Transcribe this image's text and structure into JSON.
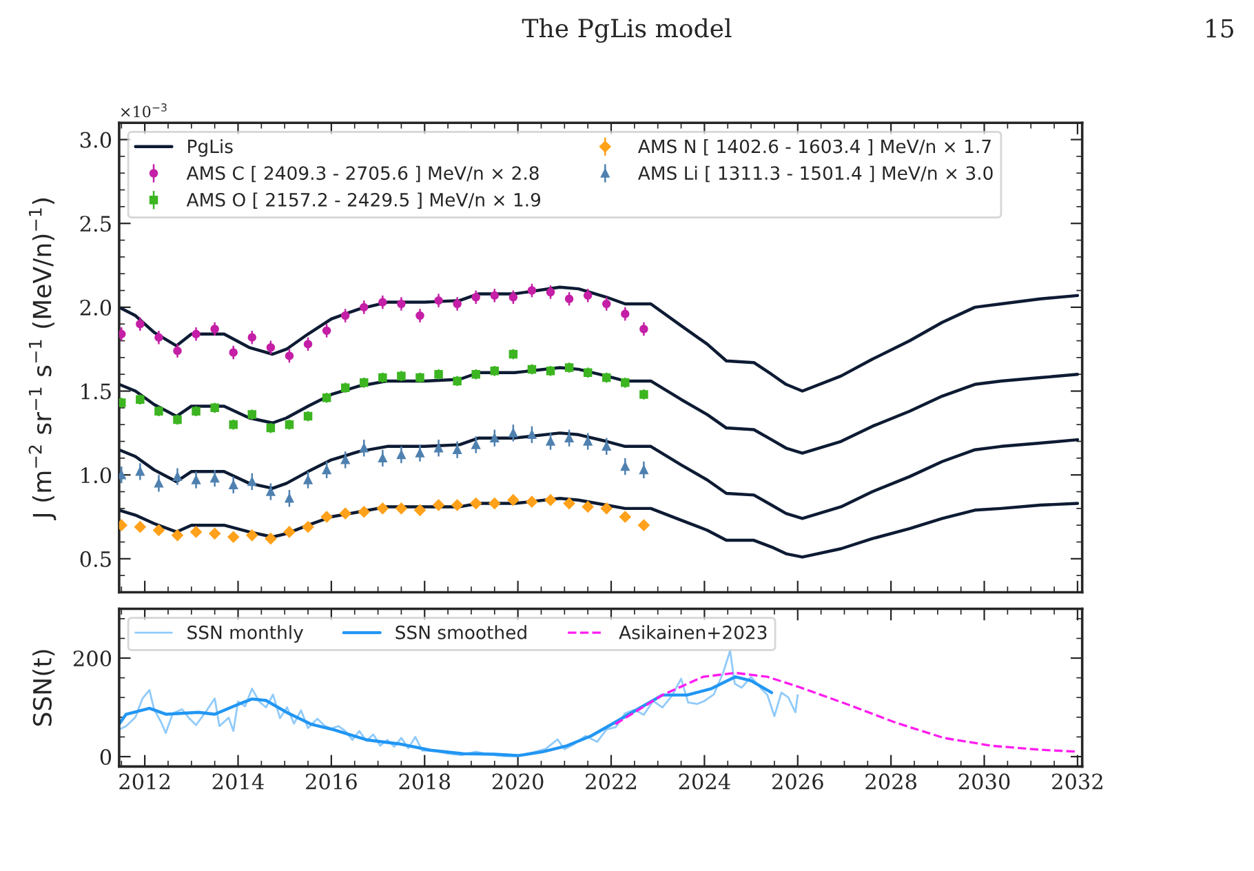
{
  "chart_data": [
    {
      "type": "line",
      "ylabel": "J (m$^{−2}$ sr$^{−1}$ s$^{−1}$ (MeV/n)$^{−1}$)",
      "annotations": [
        "The PgLis model",
        "15",
        "×10$^{−3}$"
      ],
      "xlim": [
        2011.45,
        2032.1
      ],
      "xticks": [
        2012,
        2014,
        2016,
        2018,
        2020,
        2022,
        2024,
        2026,
        2028,
        2030,
        2032
      ],
      "ylim": [
        0.3,
        3.1
      ],
      "yticks": [
        0.5,
        {
          "value": 1,
          "label": "1.0"
        },
        1.5,
        {
          "value": 2,
          "label": "2.0"
        },
        2.5,
        {
          "value": 3,
          "label": "3.0"
        }
      ],
      "tick_labels": "y",
      "legend": "top left",
      "series": [
        {
          "name": "PgLis",
          "type": "line",
          "color": "#0d1b33",
          "line_style": "solid",
          "x": [
            2011.45,
            2011.8,
            2012.2,
            2012.68,
            2013.0,
            2013.7,
            2014.24,
            2014.74,
            2015.04,
            2015.5,
            2016.0,
            2016.6,
            2017.2,
            2018.0,
            2018.75,
            2019.16,
            2019.93,
            2020.9,
            2021.3,
            2021.9,
            2022.3,
            2022.85,
            2023.5,
            2024.06,
            2024.47,
            2025.06,
            2025.44,
            2025.75,
            2026.1,
            2026.93,
            2027.6,
            2028.4,
            2029.1,
            2029.8,
            2030.36,
            2031.2,
            2032.0
          ],
          "values": [
            2.0,
            1.95,
            1.85,
            1.77,
            1.84,
            1.84,
            1.76,
            1.72,
            1.75,
            1.84,
            1.93,
            1.99,
            2.03,
            2.03,
            2.04,
            2.08,
            2.08,
            2.12,
            2.11,
            2.06,
            2.02,
            2.02,
            1.89,
            1.78,
            1.68,
            1.67,
            1.6,
            1.54,
            1.5,
            1.59,
            1.69,
            1.8,
            1.91,
            2.0,
            2.02,
            2.05,
            2.07
          ]
        },
        {
          "name": "AMS C [ 2409.3 - 2705.6 ] MeV/n × 2.8",
          "type": "scatter",
          "marker": "circle",
          "color": "#c41fa6",
          "x": [
            2011.5,
            2011.9,
            2012.3,
            2012.7,
            2013.1,
            2013.5,
            2013.9,
            2014.3,
            2014.7,
            2015.1,
            2015.5,
            2015.9,
            2016.3,
            2016.7,
            2017.1,
            2017.5,
            2017.9,
            2018.3,
            2018.7,
            2019.1,
            2019.5,
            2019.9,
            2020.3,
            2020.7,
            2021.1,
            2021.5,
            2021.9,
            2022.3,
            2022.7
          ],
          "values": [
            1.84,
            1.9,
            1.82,
            1.74,
            1.84,
            1.87,
            1.73,
            1.82,
            1.76,
            1.71,
            1.78,
            1.86,
            1.95,
            2.0,
            2.03,
            2.02,
            1.95,
            2.04,
            2.02,
            2.06,
            2.07,
            2.06,
            2.1,
            2.09,
            2.05,
            2.07,
            2.02,
            1.96,
            1.87
          ],
          "errors": [
            0.04,
            0.04,
            0.04,
            0.04,
            0.04,
            0.04,
            0.04,
            0.04,
            0.04,
            0.04,
            0.04,
            0.04,
            0.04,
            0.04,
            0.04,
            0.04,
            0.04,
            0.04,
            0.04,
            0.04,
            0.04,
            0.04,
            0.04,
            0.04,
            0.04,
            0.04,
            0.04,
            0.04,
            0.04
          ]
        },
        {
          "name": "AMS O [ 2157.2 - 2429.5 ] MeV/n × 1.9",
          "type": "scatter",
          "marker": "square",
          "color": "#3cb521",
          "x": [
            2011.5,
            2011.9,
            2012.3,
            2012.7,
            2013.1,
            2013.5,
            2013.9,
            2014.3,
            2014.7,
            2015.1,
            2015.5,
            2015.9,
            2016.3,
            2016.7,
            2017.1,
            2017.5,
            2017.9,
            2018.3,
            2018.7,
            2019.1,
            2019.5,
            2019.9,
            2020.3,
            2020.7,
            2021.1,
            2021.5,
            2021.9,
            2022.3,
            2022.7
          ],
          "values": [
            1.43,
            1.45,
            1.38,
            1.33,
            1.38,
            1.4,
            1.3,
            1.36,
            1.28,
            1.3,
            1.35,
            1.46,
            1.52,
            1.55,
            1.58,
            1.59,
            1.58,
            1.6,
            1.56,
            1.6,
            1.62,
            1.72,
            1.63,
            1.62,
            1.64,
            1.61,
            1.58,
            1.55,
            1.48
          ],
          "errors": [
            0.03,
            0.03,
            0.03,
            0.03,
            0.03,
            0.03,
            0.03,
            0.03,
            0.03,
            0.03,
            0.03,
            0.03,
            0.03,
            0.03,
            0.03,
            0.03,
            0.03,
            0.03,
            0.03,
            0.03,
            0.03,
            0.03,
            0.03,
            0.03,
            0.03,
            0.03,
            0.03,
            0.03,
            0.03
          ]
        },
        {
          "name": "AMS N [ 1402.6 - 1603.4 ] MeV/n × 1.7",
          "type": "scatter",
          "marker": "diamond",
          "color": "#ffa11a",
          "x": [
            2011.5,
            2011.9,
            2012.3,
            2012.7,
            2013.1,
            2013.5,
            2013.9,
            2014.3,
            2014.7,
            2015.1,
            2015.5,
            2015.9,
            2016.3,
            2016.7,
            2017.1,
            2017.5,
            2017.9,
            2018.3,
            2018.7,
            2019.1,
            2019.5,
            2019.9,
            2020.3,
            2020.7,
            2021.1,
            2021.5,
            2021.9,
            2022.3,
            2022.7
          ],
          "values": [
            0.7,
            0.69,
            0.67,
            0.64,
            0.66,
            0.65,
            0.63,
            0.64,
            0.62,
            0.66,
            0.69,
            0.75,
            0.77,
            0.78,
            0.8,
            0.8,
            0.79,
            0.82,
            0.82,
            0.83,
            0.83,
            0.85,
            0.84,
            0.85,
            0.83,
            0.81,
            0.8,
            0.75,
            0.7
          ],
          "errors": [
            0.02,
            0.02,
            0.02,
            0.02,
            0.02,
            0.02,
            0.02,
            0.02,
            0.02,
            0.02,
            0.02,
            0.02,
            0.02,
            0.02,
            0.02,
            0.02,
            0.02,
            0.02,
            0.02,
            0.02,
            0.02,
            0.02,
            0.02,
            0.02,
            0.02,
            0.02,
            0.02,
            0.02,
            0.02
          ]
        },
        {
          "name": "AMS Li [ 1311.3 - 1501.4 ] MeV/n × 3.0",
          "type": "scatter",
          "marker": "triangle",
          "color": "#4f81b0",
          "x": [
            2011.5,
            2011.9,
            2012.3,
            2012.7,
            2013.1,
            2013.5,
            2013.9,
            2014.3,
            2014.7,
            2015.1,
            2015.5,
            2015.9,
            2016.3,
            2016.7,
            2017.1,
            2017.5,
            2017.9,
            2018.3,
            2018.7,
            2019.1,
            2019.5,
            2019.9,
            2020.3,
            2020.7,
            2021.1,
            2021.5,
            2021.9,
            2022.3,
            2022.7
          ],
          "values": [
            1.0,
            1.02,
            0.95,
            0.99,
            0.97,
            0.98,
            0.94,
            0.96,
            0.9,
            0.86,
            0.97,
            1.03,
            1.09,
            1.16,
            1.1,
            1.12,
            1.13,
            1.16,
            1.15,
            1.18,
            1.22,
            1.25,
            1.24,
            1.2,
            1.22,
            1.2,
            1.17,
            1.05,
            1.03
          ],
          "errors": [
            0.05,
            0.05,
            0.05,
            0.05,
            0.05,
            0.05,
            0.05,
            0.05,
            0.05,
            0.05,
            0.05,
            0.05,
            0.05,
            0.05,
            0.05,
            0.05,
            0.05,
            0.05,
            0.05,
            0.05,
            0.05,
            0.05,
            0.05,
            0.05,
            0.05,
            0.05,
            0.05,
            0.05,
            0.05
          ]
        },
        {
          "type": "line",
          "color": "#0d1b33",
          "line_style": "solid",
          "x": [
            2011.45,
            2011.8,
            2012.2,
            2012.68,
            2013.0,
            2013.7,
            2014.24,
            2014.74,
            2015.04,
            2015.5,
            2016.0,
            2016.6,
            2017.2,
            2018.0,
            2018.75,
            2019.16,
            2019.93,
            2020.9,
            2021.3,
            2021.9,
            2022.3,
            2022.85,
            2023.5,
            2024.06,
            2024.47,
            2025.06,
            2025.44,
            2025.75,
            2026.1,
            2026.93,
            2027.6,
            2028.4,
            2029.1,
            2029.8,
            2030.36,
            2031.2,
            2032.0
          ],
          "values": [
            1.54,
            1.5,
            1.42,
            1.35,
            1.41,
            1.41,
            1.34,
            1.31,
            1.34,
            1.41,
            1.48,
            1.53,
            1.56,
            1.56,
            1.57,
            1.61,
            1.61,
            1.64,
            1.63,
            1.59,
            1.56,
            1.56,
            1.45,
            1.36,
            1.28,
            1.27,
            1.21,
            1.16,
            1.13,
            1.2,
            1.29,
            1.38,
            1.47,
            1.54,
            1.56,
            1.58,
            1.6
          ]
        },
        {
          "type": "line",
          "color": "#0d1b33",
          "line_style": "solid",
          "x": [
            2011.45,
            2011.8,
            2012.2,
            2012.68,
            2013.0,
            2013.7,
            2014.24,
            2014.74,
            2015.04,
            2015.5,
            2016.0,
            2016.6,
            2017.2,
            2018.0,
            2018.75,
            2019.16,
            2019.93,
            2020.9,
            2021.3,
            2021.9,
            2022.3,
            2022.85,
            2023.5,
            2024.06,
            2024.47,
            2025.06,
            2025.44,
            2025.75,
            2026.1,
            2026.93,
            2027.6,
            2028.4,
            2029.1,
            2029.8,
            2030.36,
            2031.2,
            2032.0
          ],
          "values": [
            1.15,
            1.11,
            1.03,
            0.96,
            1.02,
            1.02,
            0.95,
            0.92,
            0.95,
            1.02,
            1.09,
            1.14,
            1.17,
            1.17,
            1.18,
            1.22,
            1.22,
            1.25,
            1.24,
            1.2,
            1.17,
            1.17,
            1.06,
            0.97,
            0.89,
            0.88,
            0.82,
            0.77,
            0.74,
            0.81,
            0.9,
            0.99,
            1.08,
            1.15,
            1.17,
            1.19,
            1.21
          ]
        },
        {
          "type": "line",
          "color": "#0d1b33",
          "line_style": "solid",
          "x": [
            2011.45,
            2011.8,
            2012.2,
            2012.68,
            2013.0,
            2013.7,
            2014.24,
            2014.74,
            2015.04,
            2015.5,
            2016.0,
            2016.6,
            2017.2,
            2018.0,
            2018.75,
            2019.16,
            2019.93,
            2020.9,
            2021.3,
            2021.9,
            2022.3,
            2022.85,
            2023.5,
            2024.06,
            2024.47,
            2025.06,
            2025.44,
            2025.75,
            2026.1,
            2026.93,
            2027.6,
            2028.4,
            2029.1,
            2029.8,
            2030.36,
            2031.2,
            2032.0
          ],
          "values": [
            0.79,
            0.76,
            0.71,
            0.66,
            0.7,
            0.7,
            0.66,
            0.63,
            0.65,
            0.7,
            0.75,
            0.78,
            0.81,
            0.81,
            0.81,
            0.83,
            0.83,
            0.86,
            0.85,
            0.82,
            0.8,
            0.8,
            0.73,
            0.67,
            0.61,
            0.61,
            0.57,
            0.53,
            0.51,
            0.56,
            0.62,
            0.68,
            0.74,
            0.79,
            0.8,
            0.82,
            0.83
          ]
        }
      ]
    },
    {
      "type": "line",
      "ylabel": "SSN(t)",
      "xlim": [
        2011.45,
        2032.1
      ],
      "xticks": [
        2012,
        2014,
        2016,
        2018,
        2020,
        2022,
        2024,
        2026,
        2028,
        2030,
        2032
      ],
      "ylim": [
        -20,
        300
      ],
      "yticks": [
        0,
        200
      ],
      "legend": "top left",
      "series": [
        {
          "name": "SSN monthly",
          "color": "#90caf9",
          "line_style": "solid",
          "x": [
            2011.45,
            2011.6,
            2011.8,
            2011.95,
            2012.1,
            2012.2,
            2012.35,
            2012.45,
            2012.6,
            2012.8,
            2012.95,
            2013.1,
            2013.3,
            2013.5,
            2013.6,
            2013.8,
            2013.9,
            2014.0,
            2014.15,
            2014.3,
            2014.45,
            2014.6,
            2014.75,
            2014.9,
            2015.05,
            2015.2,
            2015.35,
            2015.5,
            2015.7,
            2015.85,
            2016.0,
            2016.15,
            2016.3,
            2016.45,
            2016.6,
            2016.75,
            2016.9,
            2017.05,
            2017.2,
            2017.35,
            2017.5,
            2017.65,
            2017.8,
            2017.95,
            2018.2,
            2018.5,
            2018.8,
            2019.1,
            2019.4,
            2019.7,
            2020.0,
            2020.3,
            2020.6,
            2020.85,
            2021.0,
            2021.2,
            2021.45,
            2021.7,
            2021.9,
            2022.1,
            2022.3,
            2022.5,
            2022.7,
            2022.9,
            2023.1,
            2023.3,
            2023.5,
            2023.65,
            2023.85,
            2024.0,
            2024.2,
            2024.4,
            2024.55,
            2024.65,
            2024.8,
            2025.0,
            2025.2,
            2025.35,
            2025.5,
            2025.65,
            2025.8,
            2025.95,
            2026.0
          ],
          "values": [
            55,
            62,
            80,
            118,
            135,
            96,
            70,
            48,
            88,
            96,
            78,
            64,
            90,
            118,
            62,
            79,
            52,
            112,
            102,
            138,
            112,
            100,
            126,
            78,
            100,
            67,
            94,
            58,
            77,
            63,
            57,
            62,
            52,
            34,
            52,
            32,
            45,
            22,
            34,
            20,
            38,
            17,
            40,
            12,
            12,
            6,
            3,
            10,
            4,
            1,
            1,
            8,
            16,
            35,
            15,
            25,
            42,
            30,
            55,
            60,
            88,
            95,
            85,
            113,
            100,
            123,
            158,
            110,
            107,
            113,
            126,
            170,
            215,
            148,
            140,
            162,
            140,
            125,
            82,
            130,
            120,
            90,
            125
          ]
        },
        {
          "name": "SSN smoothed",
          "color": "#2196f3",
          "line_style": "solid",
          "x": [
            2011.45,
            2011.6,
            2012.1,
            2012.46,
            2013.15,
            2013.5,
            2014.0,
            2014.3,
            2014.6,
            2015.04,
            2015.56,
            2016.07,
            2016.76,
            2017.45,
            2018.13,
            2018.82,
            2019.5,
            2020.0,
            2020.54,
            2021.05,
            2021.57,
            2022.09,
            2022.6,
            2023.1,
            2023.63,
            2024.15,
            2024.66,
            2025.0,
            2025.44
          ],
          "values": [
            66,
            86,
            98,
            86,
            90,
            86,
            106,
            117,
            114,
            90,
            66,
            54,
            34,
            26,
            13,
            6,
            5,
            2,
            10,
            22,
            42,
            70,
            98,
            125,
            125,
            138,
            162,
            154,
            130
          ]
        },
        {
          "name": "Asikainen+2023",
          "color": "#ff1cf0",
          "line_style": "dashed",
          "x": [
            2022.09,
            2023.1,
            2023.97,
            2024.66,
            2025.35,
            2026.04,
            2027.07,
            2028.1,
            2029.13,
            2030.16,
            2031.2,
            2032.0
          ],
          "values": [
            66,
            125,
            162,
            170,
            162,
            141,
            106,
            69,
            38,
            22,
            14,
            10
          ]
        }
      ]
    }
  ]
}
